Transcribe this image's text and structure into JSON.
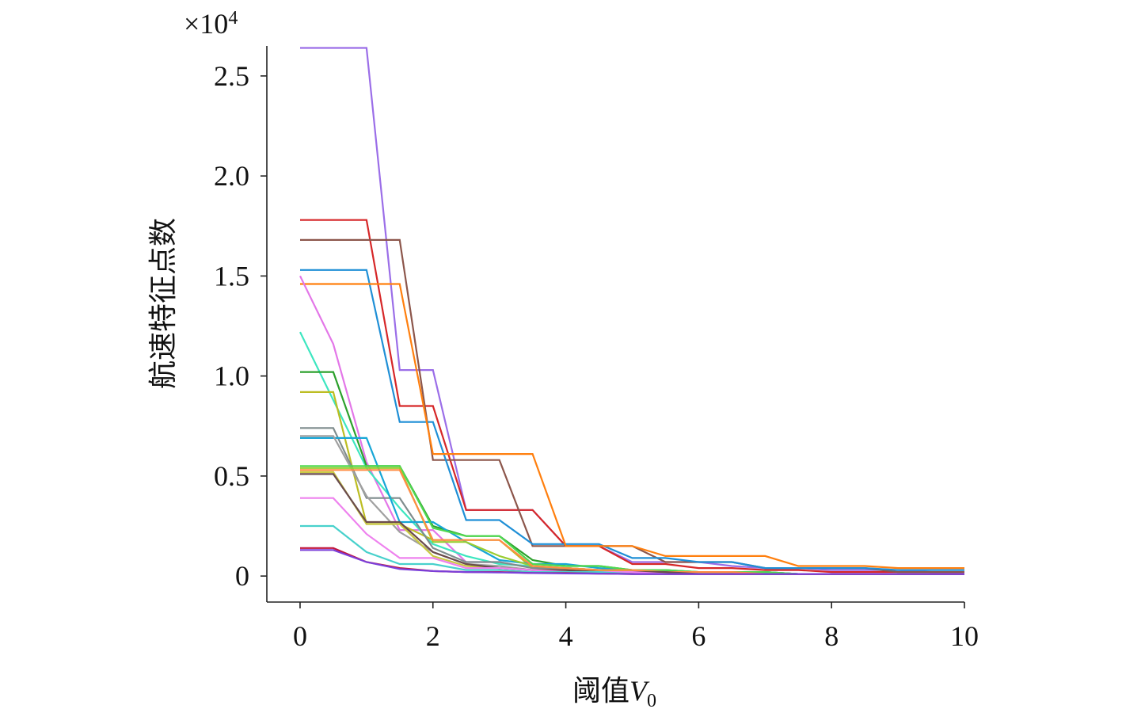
{
  "chart_data": {
    "type": "line",
    "xlabel_main": "阈值",
    "xlabel_var": "V",
    "xlabel_sub": "0",
    "ylabel": "航速特征点数",
    "y_multiplier": "×10",
    "y_multiplier_exp": "4",
    "xlim": [
      -0.5,
      10
    ],
    "ylim": [
      -0.13,
      2.65
    ],
    "x_ticks": [
      0,
      2,
      4,
      6,
      8,
      10
    ],
    "x_tick_labels": [
      "0",
      "2",
      "4",
      "6",
      "8",
      "10"
    ],
    "y_ticks": [
      0,
      0.5,
      1.0,
      1.5,
      2.0,
      2.5
    ],
    "y_tick_labels": [
      "0",
      "0.5",
      "1.0",
      "1.5",
      "2.0",
      "2.5"
    ],
    "x": [
      0,
      0.5,
      1,
      1.5,
      2,
      2.5,
      3,
      3.5,
      4,
      4.5,
      5,
      5.5,
      6,
      6.5,
      7,
      7.5,
      8,
      8.5,
      9,
      9.5,
      10
    ],
    "series": [
      {
        "color": "#9b6ee8",
        "values": [
          2.64,
          2.64,
          2.64,
          1.03,
          1.03,
          0.33,
          0.33,
          0.33,
          0.15,
          0.15,
          0.07,
          0.07,
          0.07,
          0.05,
          0.04,
          0.04,
          0.03,
          0.03,
          0.03,
          0.02,
          0.02
        ]
      },
      {
        "color": "#d62728",
        "values": [
          1.78,
          1.78,
          1.78,
          0.85,
          0.85,
          0.33,
          0.33,
          0.33,
          0.15,
          0.15,
          0.06,
          0.06,
          0.04,
          0.04,
          0.03,
          0.03,
          0.02,
          0.02,
          0.02,
          0.02,
          0.02
        ]
      },
      {
        "color": "#8c564b",
        "values": [
          1.68,
          1.68,
          1.68,
          1.68,
          0.58,
          0.58,
          0.58,
          0.15,
          0.15,
          0.15,
          0.15,
          0.07,
          0.07,
          0.07,
          0.04,
          0.04,
          0.04,
          0.04,
          0.02,
          0.02,
          0.02
        ]
      },
      {
        "color": "#1f8fd6",
        "values": [
          1.53,
          1.53,
          1.53,
          0.77,
          0.77,
          0.28,
          0.28,
          0.16,
          0.16,
          0.16,
          0.09,
          0.09,
          0.07,
          0.07,
          0.04,
          0.04,
          0.04,
          0.04,
          0.03,
          0.03,
          0.03
        ]
      },
      {
        "color": "#ff7f0e",
        "values": [
          1.46,
          1.46,
          1.46,
          1.46,
          0.61,
          0.61,
          0.61,
          0.61,
          0.15,
          0.15,
          0.15,
          0.1,
          0.1,
          0.1,
          0.1,
          0.05,
          0.05,
          0.05,
          0.04,
          0.04,
          0.04
        ]
      },
      {
        "color": "#e377e8",
        "values": [
          1.5,
          1.16,
          0.57,
          0.23,
          0.23,
          0.07,
          0.07,
          0.04,
          0.04,
          0.03,
          0.03,
          0.02,
          0.02,
          0.02,
          0.02,
          0.01,
          0.01,
          0.01,
          0.01,
          0.01,
          0.01
        ]
      },
      {
        "color": "#3de6c0",
        "values": [
          1.22,
          0.88,
          0.54,
          0.34,
          0.16,
          0.1,
          0.06,
          0.05,
          0.04,
          0.03,
          0.02,
          0.02,
          0.01,
          0.01,
          0.01,
          0.01,
          0.01,
          0.01,
          0.01,
          0.01,
          0.01
        ]
      },
      {
        "color": "#2ca02c",
        "values": [
          1.02,
          1.02,
          0.55,
          0.55,
          0.25,
          0.2,
          0.2,
          0.08,
          0.05,
          0.05,
          0.03,
          0.03,
          0.02,
          0.02,
          0.02,
          0.01,
          0.01,
          0.01,
          0.01,
          0.01,
          0.01
        ]
      },
      {
        "color": "#bcbd22",
        "values": [
          0.92,
          0.92,
          0.26,
          0.26,
          0.18,
          0.18,
          0.18,
          0.04,
          0.04,
          0.03,
          0.03,
          0.02,
          0.02,
          0.02,
          0.01,
          0.01,
          0.01,
          0.01,
          0.01,
          0.01,
          0.01
        ]
      },
      {
        "color": "#7f8c8d",
        "values": [
          0.74,
          0.74,
          0.39,
          0.39,
          0.14,
          0.07,
          0.07,
          0.04,
          0.04,
          0.03,
          0.03,
          0.02,
          0.02,
          0.02,
          0.01,
          0.01,
          0.01,
          0.01,
          0.01,
          0.01,
          0.01
        ]
      },
      {
        "color": "#17a6d6",
        "values": [
          0.69,
          0.69,
          0.69,
          0.27,
          0.27,
          0.17,
          0.08,
          0.06,
          0.06,
          0.04,
          0.03,
          0.02,
          0.02,
          0.02,
          0.02,
          0.01,
          0.01,
          0.01,
          0.01,
          0.01,
          0.01
        ]
      },
      {
        "color": "#a0a0a0",
        "values": [
          0.7,
          0.7,
          0.4,
          0.22,
          0.12,
          0.06,
          0.05,
          0.03,
          0.03,
          0.02,
          0.02,
          0.02,
          0.01,
          0.01,
          0.01,
          0.01,
          0.01,
          0.01,
          0.01,
          0.01,
          0.01
        ]
      },
      {
        "color": "#4fd84f",
        "values": [
          0.55,
          0.55,
          0.55,
          0.55,
          0.24,
          0.2,
          0.2,
          0.06,
          0.05,
          0.05,
          0.03,
          0.03,
          0.02,
          0.02,
          0.02,
          0.01,
          0.01,
          0.01,
          0.01,
          0.01,
          0.01
        ]
      },
      {
        "color": "#9acd32",
        "values": [
          0.54,
          0.54,
          0.54,
          0.54,
          0.17,
          0.17,
          0.1,
          0.05,
          0.04,
          0.03,
          0.02,
          0.02,
          0.02,
          0.01,
          0.01,
          0.01,
          0.01,
          0.01,
          0.01,
          0.01,
          0.01
        ]
      },
      {
        "color": "#ff8c42",
        "values": [
          0.53,
          0.53,
          0.53,
          0.53,
          0.18,
          0.18,
          0.18,
          0.05,
          0.04,
          0.03,
          0.03,
          0.02,
          0.02,
          0.02,
          0.01,
          0.01,
          0.01,
          0.01,
          0.01,
          0.01,
          0.01
        ]
      },
      {
        "color": "#c9c942",
        "values": [
          0.52,
          0.52,
          0.26,
          0.26,
          0.1,
          0.05,
          0.04,
          0.03,
          0.03,
          0.02,
          0.02,
          0.02,
          0.01,
          0.01,
          0.01,
          0.01,
          0.01,
          0.01,
          0.01,
          0.01,
          0.01
        ]
      },
      {
        "color": "#6b4c4c",
        "values": [
          0.51,
          0.51,
          0.27,
          0.27,
          0.12,
          0.06,
          0.04,
          0.03,
          0.03,
          0.02,
          0.02,
          0.02,
          0.01,
          0.01,
          0.01,
          0.01,
          0.01,
          0.01,
          0.01,
          0.01,
          0.01
        ]
      },
      {
        "color": "#ee82ee",
        "values": [
          0.39,
          0.39,
          0.21,
          0.09,
          0.09,
          0.04,
          0.04,
          0.03,
          0.02,
          0.02,
          0.02,
          0.01,
          0.01,
          0.01,
          0.01,
          0.01,
          0.01,
          0.01,
          0.01,
          0.01,
          0.01
        ]
      },
      {
        "color": "#48d1cc",
        "values": [
          0.25,
          0.25,
          0.12,
          0.06,
          0.06,
          0.03,
          0.03,
          0.02,
          0.02,
          0.02,
          0.01,
          0.01,
          0.01,
          0.01,
          0.01,
          0.01,
          0.01,
          0.01,
          0.01,
          0.01,
          0.01
        ]
      },
      {
        "color": "#c0143c",
        "values": [
          0.14,
          0.14,
          0.07,
          0.04,
          0.025,
          0.02,
          0.02,
          0.015,
          0.015,
          0.012,
          0.01,
          0.01,
          0.01,
          0.01,
          0.01,
          0.01,
          0.01,
          0.01,
          0.01,
          0.01,
          0.01
        ]
      },
      {
        "color": "#7b3fd9",
        "values": [
          0.13,
          0.13,
          0.07,
          0.035,
          0.025,
          0.02,
          0.018,
          0.015,
          0.013,
          0.012,
          0.01,
          0.01,
          0.01,
          0.01,
          0.01,
          0.01,
          0.01,
          0.01,
          0.01,
          0.01,
          0.01
        ]
      }
    ]
  }
}
